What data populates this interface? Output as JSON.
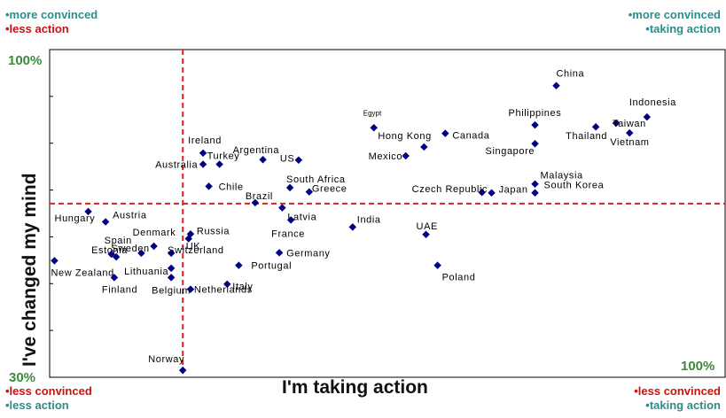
{
  "corners": {
    "top_left": {
      "line1": "•more convinced",
      "line2": "•less action"
    },
    "top_right": {
      "line1": "•more convinced",
      "line2": "•taking action"
    },
    "bottom_left": {
      "line1": "•less convinced",
      "line2": "•less action"
    },
    "bottom_right": {
      "line1": "•less convinced",
      "line2": "•taking action"
    }
  },
  "colors": {
    "blue_text": "#2e8b8b",
    "red_text": "#cc1111",
    "percent": "#3a8a3a",
    "marker": "#000080",
    "reference_line": "#e02020"
  },
  "chart_data": {
    "type": "scatter",
    "xlabel": "I'm taking action",
    "ylabel": "I've changed my mind",
    "xlim_label": "100%",
    "ylim_top_label": "100%",
    "origin_label": "30%",
    "xlim": [
      30,
      100
    ],
    "ylim": [
      30,
      100
    ],
    "reference_lines": {
      "x": 43.8,
      "y": 67.1
    },
    "grid": false,
    "points": [
      {
        "name": "China",
        "x": 82.5,
        "y": 92.3
      },
      {
        "name": "Indonesia",
        "x": 91.9,
        "y": 85.6
      },
      {
        "name": "Taiwan",
        "x": 88.7,
        "y": 84.3
      },
      {
        "name": "Thailand",
        "x": 86.6,
        "y": 83.5
      },
      {
        "name": "Vietnam",
        "x": 90.1,
        "y": 82.2
      },
      {
        "name": "Philippines",
        "x": 80.3,
        "y": 83.9
      },
      {
        "name": "Egypt",
        "x": 63.6,
        "y": 83.3
      },
      {
        "name": "Canada",
        "x": 71.0,
        "y": 82.1
      },
      {
        "name": "Hong Kong",
        "x": 68.8,
        "y": 79.2
      },
      {
        "name": "Singapore",
        "x": 80.3,
        "y": 79.9
      },
      {
        "name": "Mexico",
        "x": 66.9,
        "y": 77.3
      },
      {
        "name": "Ireland",
        "x": 45.9,
        "y": 77.9
      },
      {
        "name": "Argentina",
        "x": 52.1,
        "y": 76.5
      },
      {
        "name": "US",
        "x": 55.8,
        "y": 76.4
      },
      {
        "name": "Turkey",
        "x": 47.6,
        "y": 75.5
      },
      {
        "name": "Australia",
        "x": 45.9,
        "y": 75.5
      },
      {
        "name": "Malaysia",
        "x": 80.3,
        "y": 71.3
      },
      {
        "name": "South Africa",
        "x": 54.9,
        "y": 70.5
      },
      {
        "name": "Chile",
        "x": 46.5,
        "y": 70.8
      },
      {
        "name": "Brazil",
        "x": 51.3,
        "y": 67.3
      },
      {
        "name": "Greece",
        "x": 56.9,
        "y": 69.6
      },
      {
        "name": "Czech Republic",
        "x": 74.8,
        "y": 69.5
      },
      {
        "name": "Japan",
        "x": 75.8,
        "y": 69.4
      },
      {
        "name": "South Korea",
        "x": 80.3,
        "y": 69.4
      },
      {
        "name": "Latvia",
        "x": 54.1,
        "y": 66.2
      },
      {
        "name": "Hungary",
        "x": 34.0,
        "y": 65.4
      },
      {
        "name": "Austria",
        "x": 35.8,
        "y": 63.2
      },
      {
        "name": "France",
        "x": 55.0,
        "y": 63.6
      },
      {
        "name": "India",
        "x": 61.4,
        "y": 62.1
      },
      {
        "name": "UAE",
        "x": 69.0,
        "y": 60.5
      },
      {
        "name": "Russia",
        "x": 44.6,
        "y": 60.6
      },
      {
        "name": "UK",
        "x": 44.4,
        "y": 59.6
      },
      {
        "name": "Denmark",
        "x": 40.8,
        "y": 58.0
      },
      {
        "name": "Sweden",
        "x": 39.5,
        "y": 56.5
      },
      {
        "name": "Switzerland",
        "x": 42.6,
        "y": 56.5
      },
      {
        "name": "Spain",
        "x": 36.4,
        "y": 56.3
      },
      {
        "name": "Estonia",
        "x": 36.9,
        "y": 55.7
      },
      {
        "name": "Germany",
        "x": 53.8,
        "y": 56.6
      },
      {
        "name": "New Zealand",
        "x": 30.5,
        "y": 54.9
      },
      {
        "name": "Portugal",
        "x": 49.6,
        "y": 53.9
      },
      {
        "name": "Lithuania",
        "x": 42.6,
        "y": 53.3
      },
      {
        "name": "Poland",
        "x": 70.2,
        "y": 53.9
      },
      {
        "name": "Finland",
        "x": 36.7,
        "y": 51.3
      },
      {
        "name": "Belgium",
        "x": 42.6,
        "y": 51.3
      },
      {
        "name": "Italy",
        "x": 48.4,
        "y": 49.9
      },
      {
        "name": "Netherlands",
        "x": 44.6,
        "y": 48.8
      },
      {
        "name": "Norway",
        "x": 43.8,
        "y": 31.5
      }
    ]
  }
}
